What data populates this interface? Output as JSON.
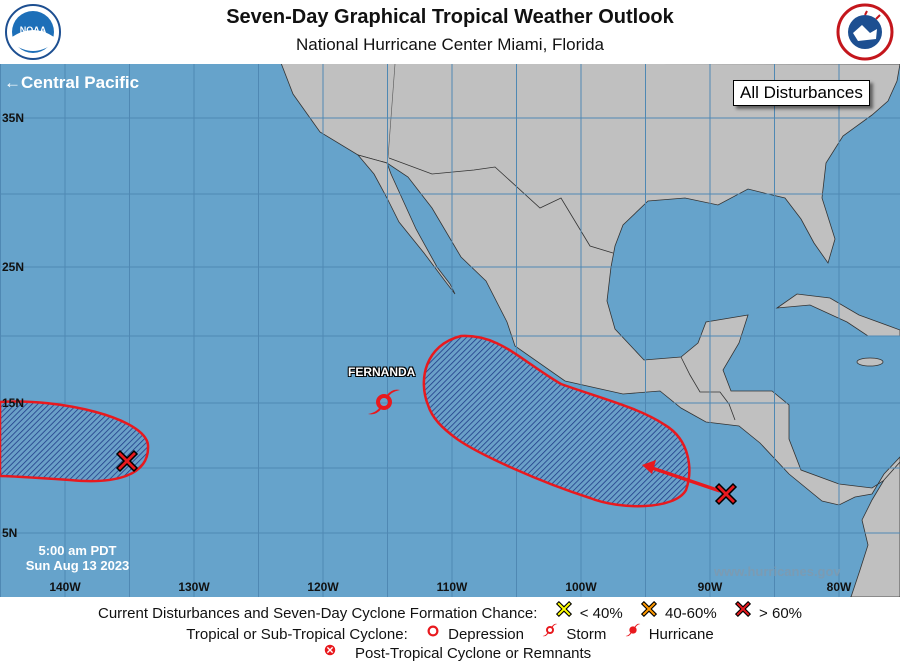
{
  "header": {
    "title": "Seven-Day Graphical Tropical Weather Outlook",
    "subtitle": "National Hurricane Center  Miami, Florida",
    "left_logo": "NOAA",
    "right_logo": "NATIONAL WEATHER SERVICE"
  },
  "map": {
    "nav_link": "Central Pacific",
    "nav_icon": "arrow-left-icon",
    "view_button": "All Disturbances",
    "timestamp_line1": "5:00 am PDT",
    "timestamp_line2": "Sun Aug 13 2023",
    "website": "www.hurricanes.gov",
    "lat_labels": [
      "35N",
      "25N",
      "15N",
      "5N"
    ],
    "lon_labels": [
      "140W",
      "130W",
      "120W",
      "110W",
      "100W",
      "90W",
      "80W"
    ],
    "storm": {
      "name": "FERNANDA",
      "type": "Storm"
    },
    "disturbances": [
      {
        "chance": "> 60%",
        "color": "#e8191e"
      },
      {
        "chance": "> 60%",
        "color": "#e8191e"
      }
    ],
    "colors": {
      "ocean": "#66a3cb",
      "land": "#c0c0c0",
      "area": "#e8191e"
    }
  },
  "legend": {
    "row1_label": "Current Disturbances and Seven-Day Cyclone Formation Chance:",
    "chances": [
      {
        "label": "< 40%",
        "color": "#ffff00"
      },
      {
        "label": "40-60%",
        "color": "#ff9900"
      },
      {
        "label": "> 60%",
        "color": "#e8191e"
      }
    ],
    "row2_label": "Tropical or Sub-Tropical Cyclone:",
    "cyclones": [
      {
        "label": "Depression",
        "icon": "depression-icon"
      },
      {
        "label": "Storm",
        "icon": "storm-icon"
      },
      {
        "label": "Hurricane",
        "icon": "hurricane-icon"
      }
    ],
    "row3_label": "Post-Tropical Cyclone or Remnants"
  }
}
